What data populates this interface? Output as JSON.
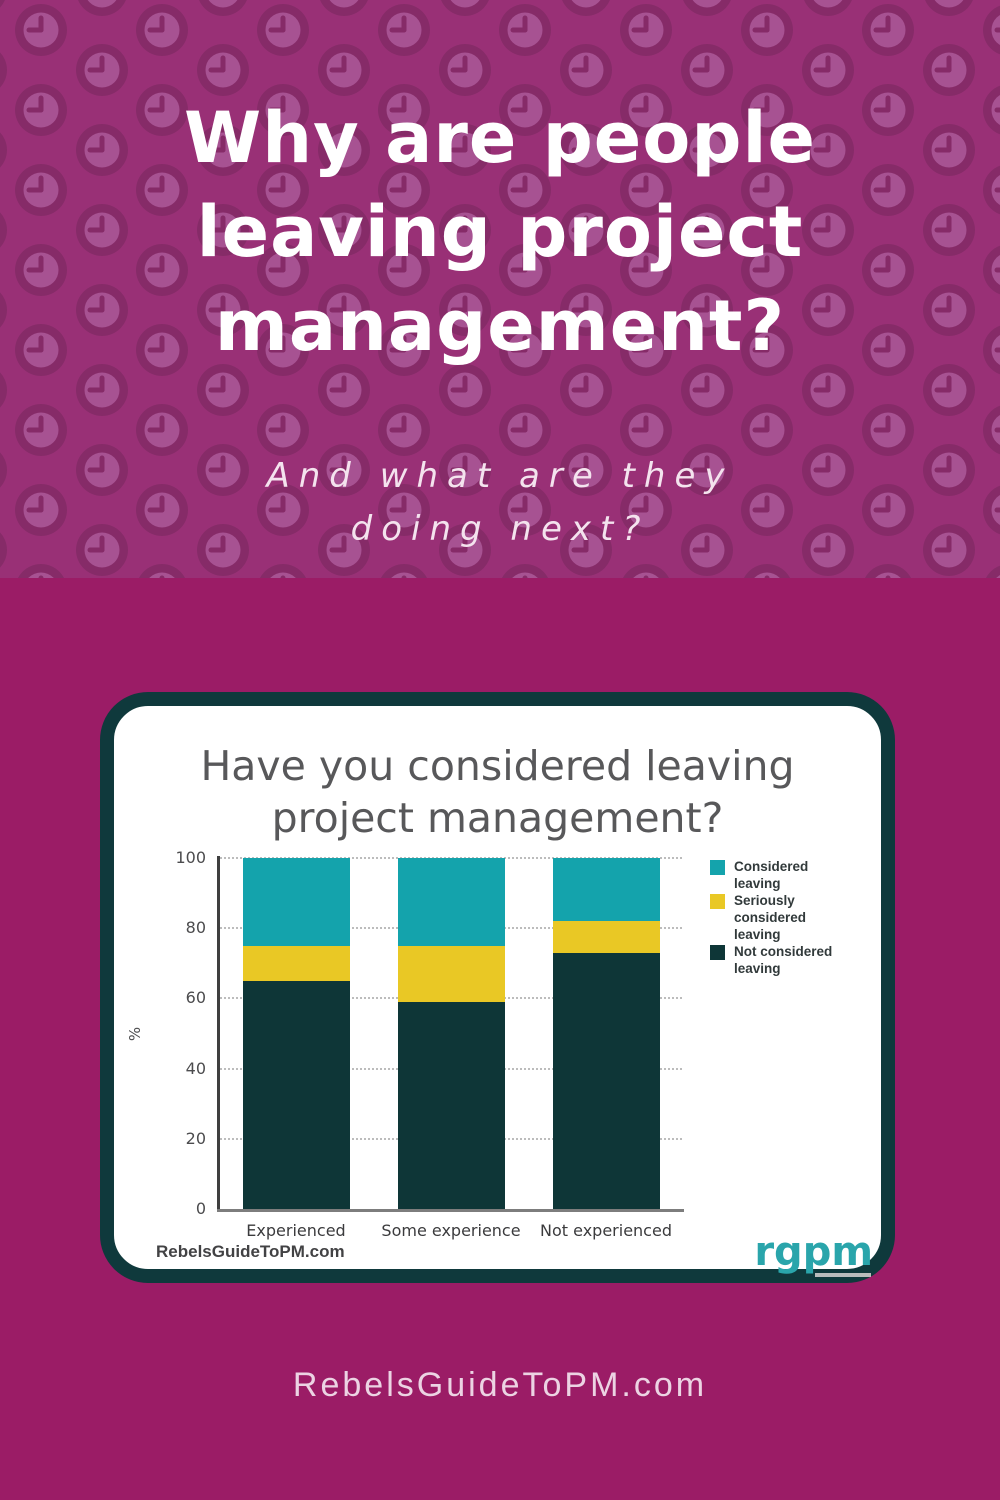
{
  "poster": {
    "title": "Why are people\nleaving project\nmanagement?",
    "subtitle": "And what are they\ndoing next?",
    "site_url": "RebelsGuideToPM.com"
  },
  "card": {
    "watermark": "RebelsGuideToPM.com",
    "logo_text": "rgpm"
  },
  "chart_data": {
    "type": "bar",
    "stacked": true,
    "title": "Have you considered leaving\nproject management?",
    "categories": [
      "Experienced",
      "Some experience",
      "Not experienced"
    ],
    "series": [
      {
        "name": "Not considered\nleaving",
        "color": "#0e3637",
        "values": [
          65,
          59,
          73
        ]
      },
      {
        "name": "Seriously\nconsidered\nleaving",
        "color": "#e9c825",
        "values": [
          10,
          16,
          9
        ]
      },
      {
        "name": "Considered\nleaving",
        "color": "#14a3ac",
        "values": [
          25,
          25,
          18
        ]
      }
    ],
    "ylabel": "%",
    "ylim": [
      0,
      100
    ],
    "yticks": [
      0,
      20,
      40,
      60,
      80,
      100
    ],
    "grid": "horizontal-dotted",
    "legend_position": "right",
    "legend_order_top_to_bottom": [
      "Considered leaving",
      "Seriously considered leaving",
      "Not considered leaving"
    ]
  },
  "colors": {
    "top_background": "#993076",
    "pattern_ring": "#862b68",
    "pattern_face": "#a75292",
    "bottom_background": "#9b1c66",
    "card_border": "#0f393c",
    "card_background": "#ffffff",
    "headline_text": "#ffffff",
    "chart_title_text": "#58585a",
    "logo_teal": "#2aa5ab"
  }
}
